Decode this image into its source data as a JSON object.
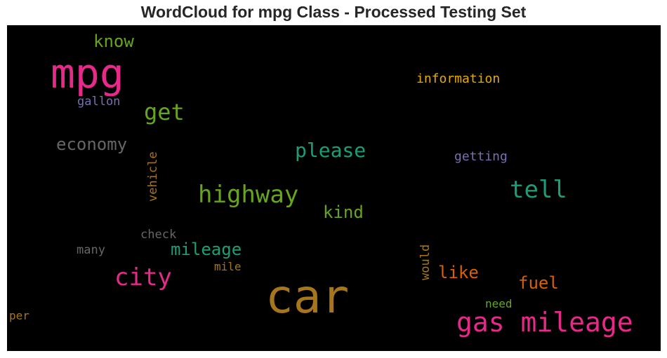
{
  "title": "WordCloud for mpg Class - Processed Testing Set",
  "palette": [
    "#e7298a",
    "#a6761d",
    "#66a61e",
    "#1b9e77",
    "#666666",
    "#7570b3",
    "#e6ab02",
    "#d95f02"
  ],
  "words": [
    {
      "text": "car",
      "color": "#a6761d"
    },
    {
      "text": "mpg",
      "color": "#e7298a"
    },
    {
      "text": "gas mileage",
      "color": "#e7298a"
    },
    {
      "text": "highway",
      "color": "#66a61e"
    },
    {
      "text": "city",
      "color": "#e7298a"
    },
    {
      "text": "tell",
      "color": "#1b9e77"
    },
    {
      "text": "please",
      "color": "#1b9e77"
    },
    {
      "text": "get",
      "color": "#66a61e"
    },
    {
      "text": "economy",
      "color": "#666666"
    },
    {
      "text": "mileage",
      "color": "#1b9e77"
    },
    {
      "text": "know",
      "color": "#66a61e"
    },
    {
      "text": "kind",
      "color": "#66a61e"
    },
    {
      "text": "like",
      "color": "#d95f02"
    },
    {
      "text": "fuel",
      "color": "#d95f02"
    },
    {
      "text": "information",
      "color": "#e6ab02"
    },
    {
      "text": "getting",
      "color": "#7570b3"
    },
    {
      "text": "gallon",
      "color": "#7570b3"
    },
    {
      "text": "vehicle",
      "color": "#a6761d"
    },
    {
      "text": "check",
      "color": "#666666"
    },
    {
      "text": "many",
      "color": "#666666"
    },
    {
      "text": "mile",
      "color": "#a6761d"
    },
    {
      "text": "would",
      "color": "#a6761d"
    },
    {
      "text": "need",
      "color": "#66a61e"
    },
    {
      "text": "per",
      "color": "#a6761d"
    }
  ]
}
